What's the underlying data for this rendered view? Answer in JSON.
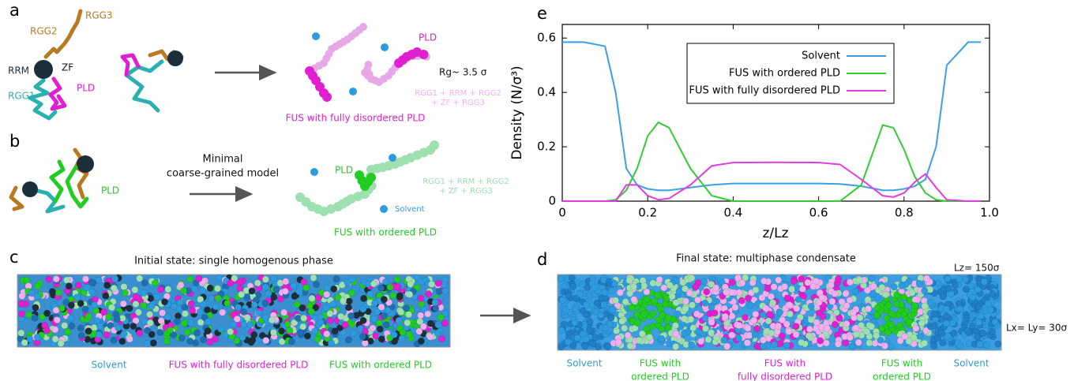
{
  "chart_data": {
    "type": "line",
    "panel_label": "e",
    "x_label": "z/Lz",
    "y_label": "Density (N/σ³)",
    "x": [
      0,
      0.05,
      0.1,
      0.125,
      0.15,
      0.175,
      0.2,
      0.225,
      0.25,
      0.3,
      0.35,
      0.4,
      0.5,
      0.6,
      0.65,
      0.7,
      0.75,
      0.775,
      0.8,
      0.825,
      0.85,
      0.875,
      0.9,
      0.95,
      0.98
    ],
    "series": [
      {
        "name": "Solvent",
        "color": "#3aa0e6",
        "values": [
          0.585,
          0.585,
          0.57,
          0.4,
          0.12,
          0.06,
          0.045,
          0.04,
          0.04,
          0.05,
          0.06,
          0.065,
          0.065,
          0.065,
          0.063,
          0.055,
          0.04,
          0.04,
          0.045,
          0.055,
          0.08,
          0.2,
          0.5,
          0.585,
          0.585
        ]
      },
      {
        "name": "FUS with ordered PLD",
        "color": "#33cc33",
        "values": [
          0,
          0,
          0,
          0.005,
          0.04,
          0.12,
          0.24,
          0.29,
          0.27,
          0.12,
          0.02,
          0,
          0,
          0,
          0,
          0.06,
          0.28,
          0.27,
          0.19,
          0.09,
          0.03,
          0.005,
          0,
          0,
          0
        ]
      },
      {
        "name": "FUS with fully disordered PLD",
        "color": "#e23be2",
        "values": [
          0,
          0,
          0,
          0,
          0.06,
          0.06,
          0.02,
          0.005,
          0.01,
          0.06,
          0.13,
          0.142,
          0.143,
          0.142,
          0.135,
          0.08,
          0.02,
          0.015,
          0.03,
          0.07,
          0.1,
          0.05,
          0.005,
          0,
          0
        ]
      }
    ],
    "xlim": [
      0,
      1
    ],
    "xticks": [
      0,
      0.2,
      0.4,
      0.6,
      0.8,
      {
        "value": 1,
        "label": "1.0"
      }
    ],
    "ylim": [
      0,
      0.65
    ],
    "yticks": [
      0,
      0.2,
      0.4,
      0.6
    ],
    "grid": false,
    "legend": "top"
  },
  "panel_a": {
    "label": "a",
    "rgg2": "RGG2",
    "rgg3": "RGG3",
    "rrm": "RRM",
    "zf": "ZF",
    "rgg1": "RGG1",
    "pld": "PLD",
    "pld_right": "PLD",
    "rg": "Rg~ 3.5 σ",
    "domains_1": "RGG1 + RRM + RGG2",
    "domains_2": "+ ZF + RGG3",
    "caption": "FUS with fully disordered PLD"
  },
  "panel_b": {
    "label": "b",
    "model_1": "Minimal",
    "model_2": "coarse-grained model",
    "pld": "PLD",
    "pld_right": "PLD",
    "domains_1": "RGG1 + RRM + RGG2",
    "domains_2": "+ ZF + RGG3",
    "solvent": "Solvent",
    "caption": "FUS with ordered PLD"
  },
  "panel_c": {
    "label": "c",
    "title": "Initial state: single homogenous phase",
    "solvent": "Solvent",
    "disordered": "FUS with fully disordered PLD",
    "ordered": "FUS with ordered PLD"
  },
  "panel_d": {
    "label": "d",
    "title": "Final state: multiphase condensate",
    "lz": "Lz= 150σ",
    "lxy": "Lx= Ly= 30σ",
    "solvent_left": "Solvent",
    "ordered_left_1": "FUS with",
    "ordered_left_2": "ordered PLD",
    "disordered_1": "FUS with",
    "disordered_2": "fully disordered PLD",
    "ordered_right_1": "FUS with",
    "ordered_right_2": "ordered PLD",
    "solvent_right": "Solvent"
  }
}
